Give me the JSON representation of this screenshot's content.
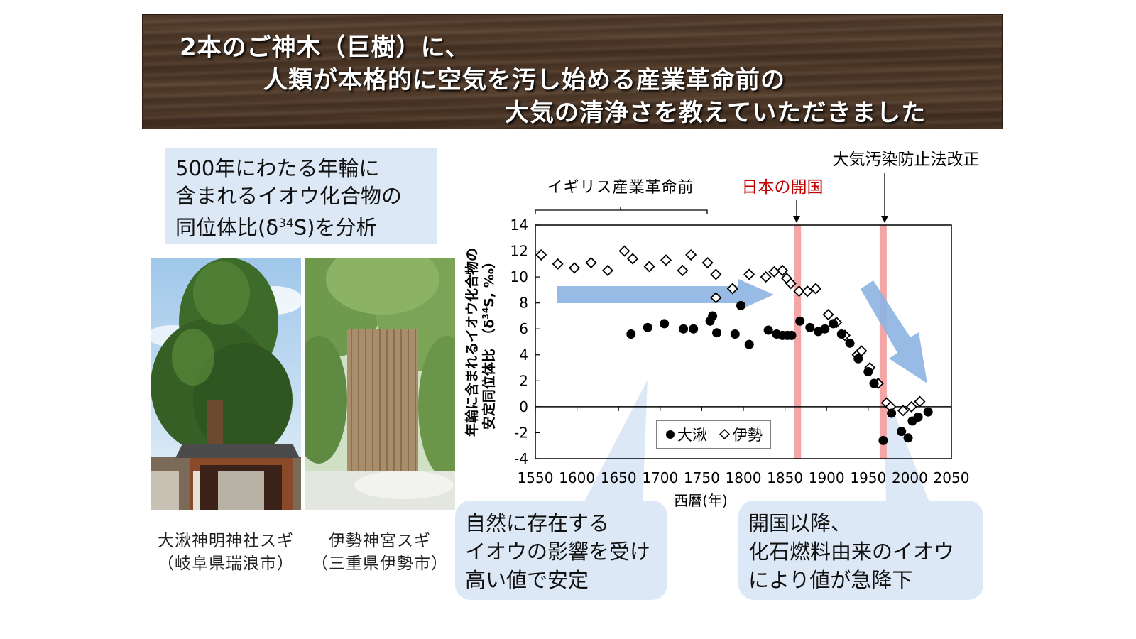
{
  "banner": {
    "line1": "2本のご神木（巨樹）に、",
    "line2": "人類が本格的に空気を汚し始める産業革命前の",
    "line3": "大気の清浄さを教えていただきました"
  },
  "info_box": {
    "line1": "500年にわたる年輪に",
    "line2": "含まれるイオウ化合物の",
    "line3_pre": "同位体比(δ",
    "line3_sup": "34",
    "line3_post": "S)を分析"
  },
  "photos": [
    {
      "caption_line1": "大湫神明神社スギ",
      "caption_line2": "（岐阜県瑞浪市）"
    },
    {
      "caption_line1": "伊勢神宮スギ",
      "caption_line2": "（三重県伊勢市）"
    }
  ],
  "callouts": {
    "left": [
      "自然に存在する",
      "イオウの影響を受け",
      "高い値で安定"
    ],
    "right": [
      "開国以降、",
      "化石燃料由来のイオウ",
      "により値が急降下"
    ]
  },
  "annotations": {
    "pre_industrial": "イギリス産業革命前",
    "japan_opening": "日本の開国",
    "japan_opening_color": "#c00000",
    "air_law": "大気汚染防止法改正"
  },
  "chart_data": {
    "type": "scatter",
    "xlabel": "西暦(年)",
    "ylabel_line1": "年輪に含まれるイオウ化合物の",
    "ylabel_line2_pre": "安定同位体比　（δ",
    "ylabel_line2_sup": "34",
    "ylabel_line2_post": "S, ‰）",
    "xlim": [
      1550,
      2050
    ],
    "ylim": [
      -4,
      14
    ],
    "xticks": [
      "1550",
      "1600",
      "1650",
      "1700",
      "1750",
      "1800",
      "1850",
      "1900",
      "1950",
      "2000",
      "2050"
    ],
    "yticks": [
      "-4",
      "-2",
      "0",
      "2",
      "4",
      "6",
      "8",
      "10",
      "12",
      "14"
    ],
    "grid": false,
    "legend_position": "bottom-center",
    "vertical_bands": [
      {
        "x": 1865,
        "color": "#f4a6a6"
      },
      {
        "x": 1968,
        "color": "#f4a6a6"
      }
    ],
    "series": [
      {
        "name": "大湫",
        "marker": "filled-circle",
        "color": "#000000",
        "points": [
          [
            1665,
            5.6
          ],
          [
            1685,
            6.1
          ],
          [
            1705,
            6.4
          ],
          [
            1728,
            6.0
          ],
          [
            1740,
            6.0
          ],
          [
            1760,
            6.6
          ],
          [
            1763,
            7.0
          ],
          [
            1768,
            5.7
          ],
          [
            1790,
            5.6
          ],
          [
            1797,
            7.8
          ],
          [
            1807,
            4.8
          ],
          [
            1830,
            5.9
          ],
          [
            1840,
            5.6
          ],
          [
            1847,
            5.5
          ],
          [
            1853,
            5.5
          ],
          [
            1858,
            5.5
          ],
          [
            1868,
            6.6
          ],
          [
            1880,
            6.1
          ],
          [
            1890,
            5.8
          ],
          [
            1898,
            6.0
          ],
          [
            1908,
            6.4
          ],
          [
            1918,
            5.6
          ],
          [
            1928,
            4.9
          ],
          [
            1938,
            3.7
          ],
          [
            1950,
            2.7
          ],
          [
            1957,
            1.8
          ],
          [
            1968,
            -2.6
          ],
          [
            1978,
            -0.5
          ],
          [
            1990,
            -1.9
          ],
          [
            1998,
            -2.4
          ],
          [
            2003,
            -1.1
          ],
          [
            2010,
            -0.8
          ],
          [
            2022,
            -0.4
          ]
        ]
      },
      {
        "name": "伊勢",
        "marker": "open-diamond",
        "color": "#000000",
        "points": [
          [
            1557,
            11.7
          ],
          [
            1577,
            11.0
          ],
          [
            1597,
            10.7
          ],
          [
            1617,
            11.1
          ],
          [
            1637,
            10.5
          ],
          [
            1657,
            12.0
          ],
          [
            1667,
            11.4
          ],
          [
            1687,
            10.8
          ],
          [
            1707,
            11.3
          ],
          [
            1727,
            10.5
          ],
          [
            1737,
            11.7
          ],
          [
            1757,
            11.1
          ],
          [
            1767,
            10.2
          ],
          [
            1767,
            8.4
          ],
          [
            1787,
            9.1
          ],
          [
            1807,
            10.2
          ],
          [
            1827,
            10.0
          ],
          [
            1837,
            10.4
          ],
          [
            1847,
            10.5
          ],
          [
            1852,
            9.9
          ],
          [
            1857,
            9.5
          ],
          [
            1867,
            8.9
          ],
          [
            1877,
            8.9
          ],
          [
            1887,
            9.1
          ],
          [
            1902,
            7.1
          ],
          [
            1912,
            6.5
          ],
          [
            1922,
            5.5
          ],
          [
            1937,
            4.0
          ],
          [
            1942,
            4.3
          ],
          [
            1952,
            3.0
          ],
          [
            1962,
            1.8
          ],
          [
            1972,
            0.3
          ],
          [
            1977,
            0.0
          ],
          [
            1992,
            -0.3
          ],
          [
            2002,
            0.0
          ],
          [
            2012,
            0.4
          ]
        ]
      }
    ]
  }
}
